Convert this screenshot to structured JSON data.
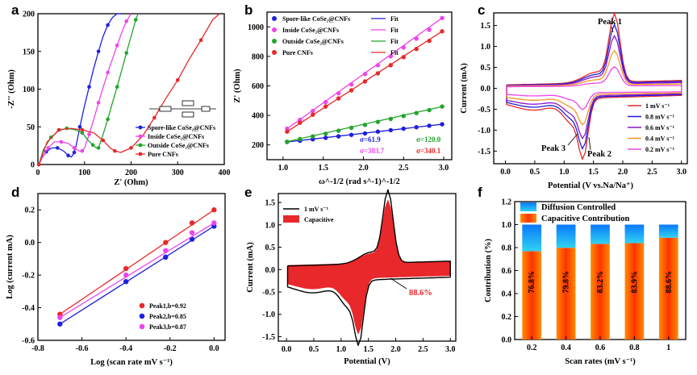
{
  "colors": {
    "blue": "#1f1fe0",
    "pink": "#ee44ee",
    "green": "#22a52a",
    "red": "#e8282a",
    "purple": "#8a18c8",
    "orange": "#f39a20",
    "cyan": "#1aa0e8"
  },
  "chart_data": [
    {
      "panel": "a",
      "type": "line",
      "xlabel": "Z' (Ohm)",
      "ylabel": "-Z'' (Ohm)",
      "xlim": [
        0,
        400
      ],
      "ylim": [
        0,
        200
      ],
      "xticks": [
        0,
        100,
        200,
        300,
        400
      ],
      "yticks": [
        0,
        50,
        100,
        150,
        200
      ],
      "inset_circuit": true,
      "series": [
        {
          "name": "Spore-like CoSe₂@CNFs",
          "color": "blue",
          "x": [
            2,
            8,
            18,
            30,
            42,
            55,
            65,
            72,
            78,
            82,
            90,
            100,
            110,
            120,
            130,
            140,
            150,
            160,
            170,
            178
          ],
          "y": [
            0,
            8,
            17,
            22,
            22,
            18,
            12,
            10,
            16,
            25,
            50,
            78,
            103,
            128,
            150,
            170,
            185,
            195,
            200,
            205
          ]
        },
        {
          "name": "Inside CoSe₂@CNFs",
          "color": "pink",
          "x": [
            2,
            10,
            22,
            35,
            50,
            65,
            78,
            88,
            95,
            100,
            110,
            120,
            130,
            140,
            150,
            160,
            170,
            180,
            190,
            200
          ],
          "y": [
            0,
            10,
            22,
            30,
            30,
            28,
            22,
            18,
            18,
            22,
            40,
            60,
            82,
            102,
            122,
            140,
            158,
            175,
            190,
            205
          ]
        },
        {
          "name": "Outside CoSe₂@CNFs",
          "color": "green",
          "x": [
            2,
            12,
            28,
            45,
            62,
            80,
            95,
            108,
            118,
            125,
            130,
            140,
            150,
            160,
            170,
            180,
            190,
            200,
            210,
            215
          ],
          "y": [
            0,
            20,
            36,
            45,
            48,
            46,
            42,
            32,
            26,
            22,
            22,
            40,
            60,
            82,
            103,
            125,
            148,
            170,
            192,
            205
          ]
        },
        {
          "name": "Pure CNFs",
          "color": "red",
          "x": [
            2,
            20,
            45,
            70,
            95,
            120,
            140,
            155,
            165,
            178,
            200,
            225,
            250,
            275,
            300,
            325,
            350,
            375,
            390
          ],
          "y": [
            0,
            30,
            46,
            48,
            46,
            42,
            32,
            22,
            18,
            16,
            22,
            38,
            62,
            88,
            112,
            140,
            165,
            192,
            205
          ]
        }
      ]
    },
    {
      "panel": "b",
      "type": "scatter",
      "xlabel": "ω^-1/2 (rad s^-1)^-1/2",
      "ylabel": "Z' (Ohm)",
      "xlim": [
        0.8,
        3.1
      ],
      "ylim": [
        100,
        1100
      ],
      "xticks": [
        1.0,
        1.5,
        2.0,
        2.5,
        3.0
      ],
      "yticks": [
        200,
        400,
        600,
        800,
        1000
      ],
      "x": [
        1.05,
        1.21,
        1.37,
        1.53,
        1.69,
        1.85,
        2.02,
        2.18,
        2.34,
        2.5,
        2.66,
        2.82,
        2.98
      ],
      "series": [
        {
          "name": "Spore-like CoSe₂@CNFs",
          "fit_label": "Fit",
          "color": "blue",
          "sigma": "σ=61.9",
          "values": [
            220,
            228,
            238,
            248,
            258,
            268,
            278,
            290,
            300,
            310,
            320,
            330,
            340
          ]
        },
        {
          "name": "Inside CoSe₂@CNFs",
          "fit_label": "Fit",
          "color": "pink",
          "sigma": "σ=383.7",
          "values": [
            310,
            370,
            430,
            490,
            550,
            610,
            680,
            740,
            800,
            860,
            920,
            980,
            1060
          ]
        },
        {
          "name": "Outside CoSe₂@CNFs",
          "fit_label": "Fit",
          "color": "green",
          "sigma": "σ=120.0",
          "values": [
            222,
            240,
            258,
            276,
            296,
            316,
            336,
            356,
            376,
            396,
            416,
            436,
            460
          ]
        },
        {
          "name": "Pure CNFs",
          "fit_label": "Fit",
          "color": "red",
          "sigma": "σ=340.1",
          "values": [
            290,
            350,
            405,
            460,
            515,
            570,
            630,
            685,
            740,
            795,
            850,
            905,
            970
          ]
        }
      ]
    },
    {
      "panel": "c",
      "type": "line",
      "xlabel": "Potential (V vs.Na/Na⁺)",
      "ylabel": "Current (mA)",
      "xlim": [
        -0.2,
        3.1
      ],
      "ylim": [
        -1.8,
        1.8
      ],
      "xticks": [
        0.0,
        0.5,
        1.0,
        1.5,
        2.0,
        2.5,
        3.0
      ],
      "yticks": [
        -1.5,
        -1.0,
        -0.5,
        0.0,
        0.5,
        1.0,
        1.5
      ],
      "annotations": [
        "Peak 1",
        "Peak 2",
        "Peak 3"
      ],
      "series": [
        {
          "name": "1 mV s⁻¹",
          "color": "red",
          "scale": 1.0
        },
        {
          "name": "0.8 mV s⁻¹",
          "color": "blue",
          "scale": 0.85
        },
        {
          "name": "0.6 mV s⁻¹",
          "color": "purple",
          "scale": 0.7
        },
        {
          "name": "0.4 mV s⁻¹",
          "color": "orange",
          "scale": 0.5
        },
        {
          "name": "0.2 mV s⁻¹",
          "color": "pink",
          "scale": 0.28
        }
      ]
    },
    {
      "panel": "d",
      "type": "scatter",
      "xlabel": "Log (scan rate mV s⁻¹)",
      "ylabel": "Log (current mA)",
      "xlim": [
        -0.8,
        0.05
      ],
      "ylim": [
        -0.6,
        0.3
      ],
      "xticks": [
        -0.8,
        -0.6,
        -0.4,
        -0.2,
        0.0
      ],
      "yticks": [
        -0.6,
        -0.4,
        -0.2,
        0.0,
        0.2
      ],
      "x": [
        -0.7,
        -0.4,
        -0.22,
        -0.1,
        0.0
      ],
      "series": [
        {
          "name": "Peak1,b=0.92",
          "color": "red",
          "values": [
            -0.44,
            -0.16,
            0.0,
            0.12,
            0.2
          ]
        },
        {
          "name": "Peak2,b=0.85",
          "color": "blue",
          "values": [
            -0.5,
            -0.24,
            -0.09,
            0.02,
            0.1
          ]
        },
        {
          "name": "Peak3,b=0.87",
          "color": "pink",
          "values": [
            -0.46,
            -0.2,
            -0.05,
            0.06,
            0.12
          ]
        }
      ]
    },
    {
      "panel": "e",
      "type": "area",
      "xlabel": "Potential (V)",
      "ylabel": "Current (mA)",
      "xlim": [
        -0.15,
        3.1
      ],
      "ylim": [
        -1.6,
        1.7
      ],
      "xticks": [
        0.0,
        0.5,
        1.0,
        1.5,
        2.0,
        2.5,
        3.0
      ],
      "yticks": [
        -1.5,
        -1.0,
        -0.5,
        0.0,
        0.5,
        1.0,
        1.5
      ],
      "series": [
        {
          "name": "1 mV s⁻¹",
          "color": "black"
        },
        {
          "name": "Capacitive",
          "color": "red"
        }
      ],
      "annotation": "88.6%"
    },
    {
      "panel": "f",
      "type": "bar",
      "xlabel": "Scan rates (mV s⁻¹)",
      "ylabel": "Contribution (%)",
      "ylim": [
        0,
        1.2
      ],
      "yticks": [
        0.0,
        0.2,
        0.4,
        0.6,
        0.8,
        1.0,
        1.2
      ],
      "categories": [
        "0.2",
        "0.4",
        "0.6",
        "0.8",
        "1"
      ],
      "series": [
        {
          "name": "Capacitive Contribution",
          "values": [
            0.768,
            0.798,
            0.832,
            0.839,
            0.886
          ]
        },
        {
          "name": "Diffusion Controlled",
          "values": [
            0.232,
            0.202,
            0.168,
            0.161,
            0.114
          ]
        }
      ],
      "labels": [
        "76.8%",
        "79.8%",
        "83.2%",
        "83.9%",
        "88.6%"
      ]
    }
  ]
}
